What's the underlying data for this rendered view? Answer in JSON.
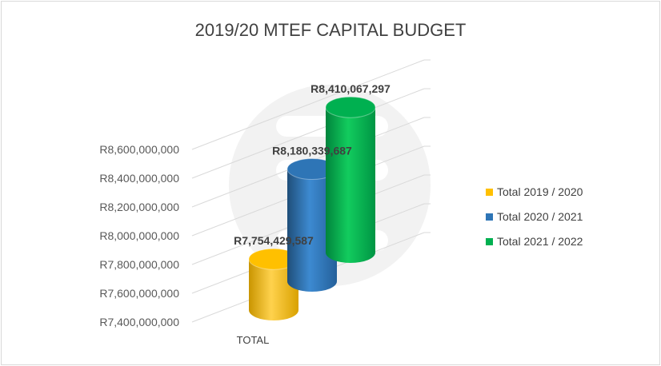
{
  "chart_data": {
    "type": "bar",
    "title": "2019/20 MTEF CAPITAL BUDGET",
    "categories": [
      "TOTAL"
    ],
    "series": [
      {
        "name": "Total 2019 / 2020",
        "values": [
          7754429587
        ],
        "label": "R7,754,429,587",
        "color": "#FFC000"
      },
      {
        "name": "Total 2020 / 2021",
        "values": [
          8180339687
        ],
        "label": "R8,180,339,687",
        "color": "#2E75B6"
      },
      {
        "name": "Total 2021 / 2022",
        "values": [
          8410067297
        ],
        "label": "R8,410,067,297",
        "color": "#00B050"
      }
    ],
    "yticks": [
      {
        "value": 7400000000,
        "label": "R7,400,000,000"
      },
      {
        "value": 7600000000,
        "label": "R7,600,000,000"
      },
      {
        "value": 7800000000,
        "label": "R7,800,000,000"
      },
      {
        "value": 8000000000,
        "label": "R8,000,000,000"
      },
      {
        "value": 8200000000,
        "label": "R8,200,000,000"
      },
      {
        "value": 8400000000,
        "label": "R8,400,000,000"
      },
      {
        "value": 8600000000,
        "label": "R8,600,000,000"
      }
    ],
    "ylim": [
      7400000000,
      8600000000
    ],
    "grid": true,
    "legend_position": "right",
    "style": "3d-cylinder"
  }
}
